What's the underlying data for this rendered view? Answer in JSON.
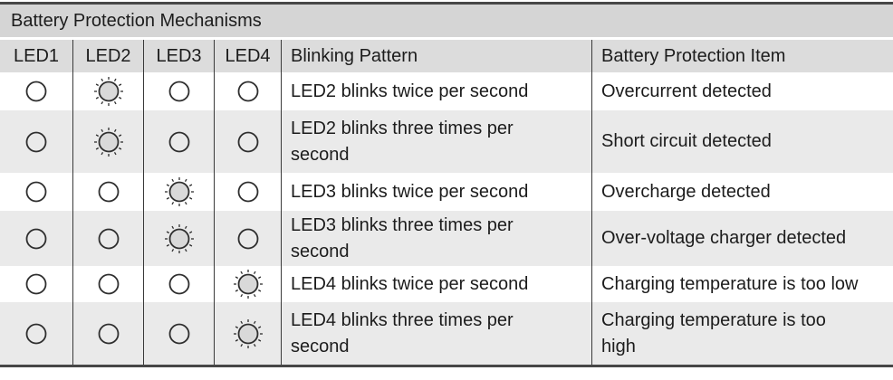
{
  "table": {
    "title": "Battery Protection Mechanisms",
    "columns": {
      "led1": "LED1",
      "led2": "LED2",
      "led3": "LED3",
      "led4": "LED4",
      "pattern": "Blinking Pattern",
      "item": "Battery Protection Item"
    },
    "rows": [
      {
        "leds": [
          "off",
          "blinking",
          "off",
          "off"
        ],
        "pattern": "LED2 blinks twice per second",
        "item": "Overcurrent detected"
      },
      {
        "leds": [
          "off",
          "blinking",
          "off",
          "off"
        ],
        "pattern": "LED2 blinks three times per\nsecond",
        "item": "Short circuit detected"
      },
      {
        "leds": [
          "off",
          "off",
          "blinking",
          "off"
        ],
        "pattern": "LED3 blinks twice per second",
        "item": "Overcharge detected"
      },
      {
        "leds": [
          "off",
          "off",
          "blinking",
          "off"
        ],
        "pattern": "LED3 blinks three times per\nsecond",
        "item": "Over-voltage charger detected"
      },
      {
        "leds": [
          "off",
          "off",
          "off",
          "blinking"
        ],
        "pattern": "LED4 blinks twice per second",
        "item": "Charging temperature is too low"
      },
      {
        "leds": [
          "off",
          "off",
          "off",
          "blinking"
        ],
        "pattern": "LED4 blinks three times per\nsecond",
        "item": "Charging temperature is too\nhigh"
      }
    ]
  },
  "colors": {
    "title_bg": "#d5d5d5",
    "header_bg": "#dcdcdc",
    "alt_row_bg": "#eaeaea",
    "rule": "#474747",
    "grid_line": "#3a3a3a",
    "led_fill": "#d9d9d9",
    "text": "#1c1c1c"
  },
  "icons": {
    "led_off": "led-off-icon",
    "led_blinking": "led-blinking-icon"
  }
}
